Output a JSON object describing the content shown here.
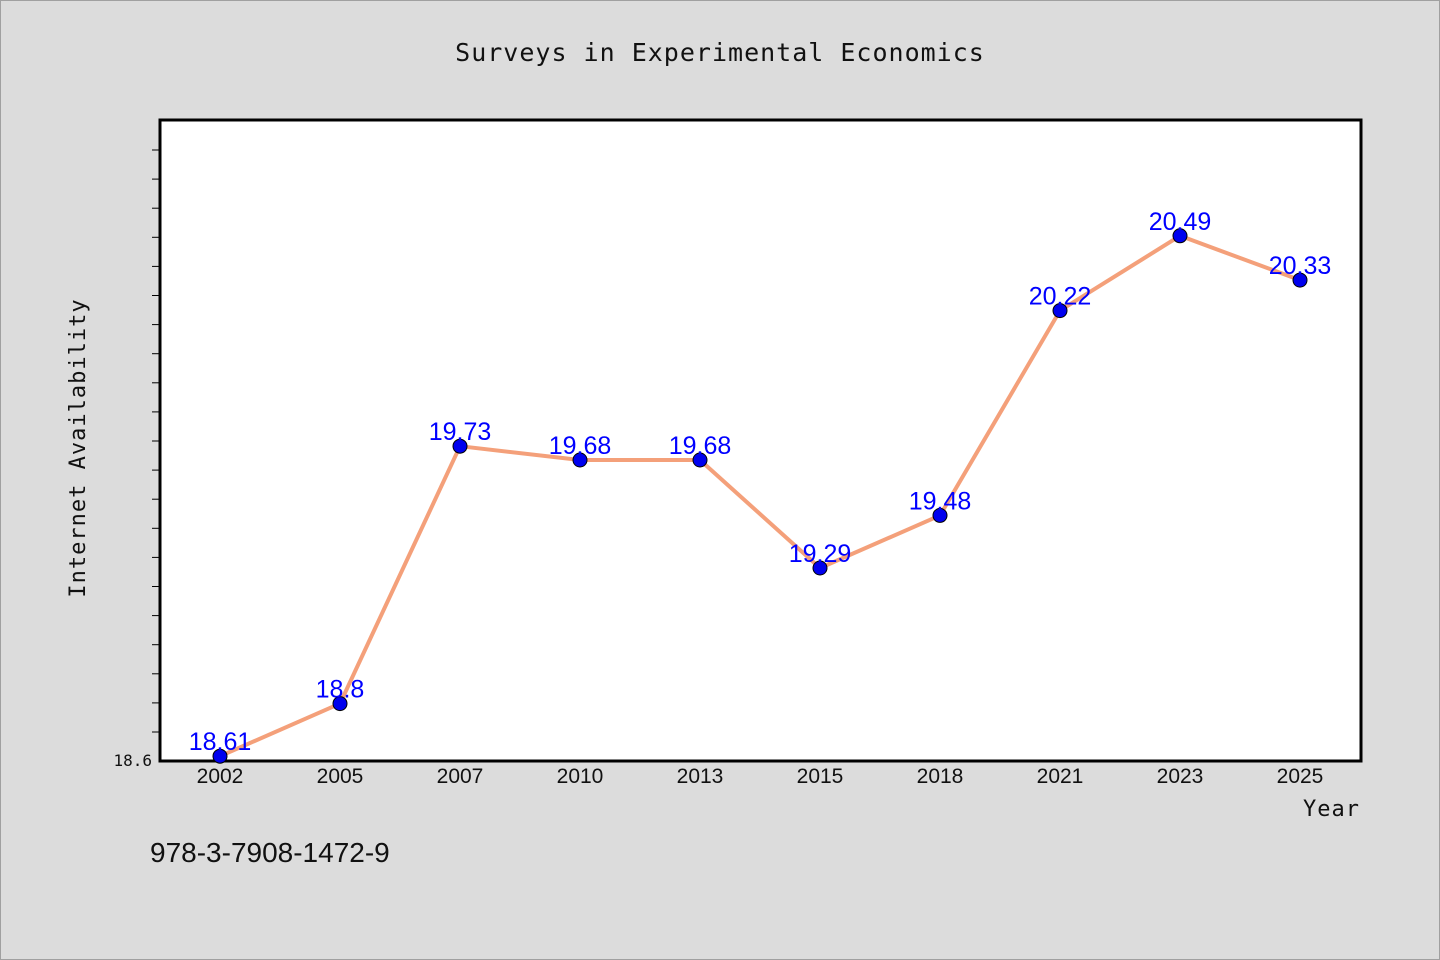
{
  "chart_data": {
    "type": "line",
    "title": "Surveys in Experimental Economics",
    "xlabel": "Year",
    "ylabel": "Internet Availability",
    "categories": [
      "2002",
      "2005",
      "2007",
      "2010",
      "2013",
      "2015",
      "2018",
      "2021",
      "2023",
      "2025"
    ],
    "series": [
      {
        "values": [
          18.61,
          18.8,
          19.73,
          19.68,
          19.68,
          19.29,
          19.48,
          20.22,
          20.49,
          20.33
        ],
        "labels": [
          "18.61",
          "18.8",
          "19.73",
          "19.68",
          "19.68",
          "19.29",
          "19.48",
          "20.22",
          "20.49",
          "20.33"
        ],
        "line_color": "#f4a07a",
        "marker_color": "#0000ee"
      }
    ],
    "ylim": [
      18.6,
      20.8
    ],
    "ytick_labels": [
      "18.6"
    ],
    "grid": false,
    "legend": "none",
    "plot_background": "#ffffff",
    "page_background": "#dcdcdc"
  },
  "footer": {
    "isbn": "978-3-7908-1472-9"
  }
}
